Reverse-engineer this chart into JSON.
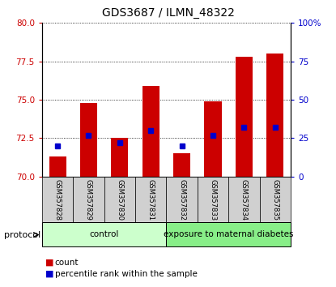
{
  "title": "GDS3687 / ILMN_48322",
  "samples": [
    "GSM357828",
    "GSM357829",
    "GSM357830",
    "GSM357831",
    "GSM357832",
    "GSM357833",
    "GSM357834",
    "GSM357835"
  ],
  "count_values": [
    71.3,
    74.8,
    72.5,
    75.9,
    71.5,
    74.9,
    77.8,
    78.0
  ],
  "percentile_values": [
    20,
    27,
    22,
    30,
    20,
    27,
    32,
    32
  ],
  "groups": [
    {
      "label": "control",
      "start": 0,
      "end": 4,
      "color": "#ccffcc"
    },
    {
      "label": "exposure to maternal diabetes",
      "start": 4,
      "end": 8,
      "color": "#88ee88"
    }
  ],
  "ylim_left": [
    70,
    80
  ],
  "ylim_right": [
    0,
    100
  ],
  "yticks_left": [
    70,
    72.5,
    75,
    77.5,
    80
  ],
  "yticks_right": [
    0,
    25,
    50,
    75,
    100
  ],
  "ytick_labels_right": [
    "0",
    "25",
    "50",
    "75",
    "100%"
  ],
  "bar_color": "#cc0000",
  "percentile_color": "#0000cc",
  "bar_width": 0.55,
  "legend_items": [
    "count",
    "percentile rank within the sample"
  ],
  "control_color": "#ccffcc",
  "diabetes_color": "#88ee88"
}
